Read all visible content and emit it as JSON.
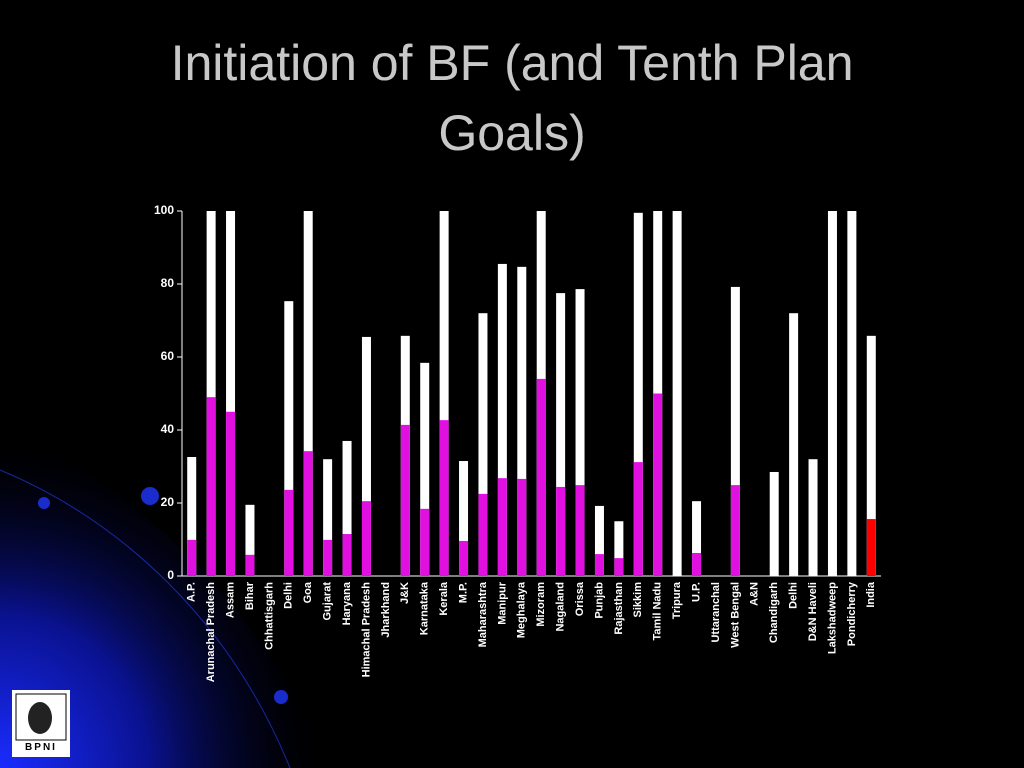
{
  "chart_data": {
    "type": "bar",
    "title": "Initiation of BF (and Tenth Plan Goals)",
    "categories": [
      "A.P.",
      "Arunachal Pradesh",
      "Assam",
      "Bihar",
      "Chhattisgarh",
      "Delhi",
      "Goa",
      "Gujarat",
      "Haryana",
      "Himachal Pradesh",
      "Jharkhand",
      "J&K",
      "Karnataka",
      "Kerala",
      "M.P.",
      "Maharashtra",
      "Manipur",
      "Meghalaya",
      "Mizoram",
      "Nagaland",
      "Orissa",
      "Punjab",
      "Rajasthan",
      "Sikkim",
      "Tamil Nadu",
      "Tripura",
      "U.P.",
      "Uttaranchal",
      "West Bengal",
      "A&N",
      "Chandigarh",
      "Delhi",
      "D&N Haveli",
      "Lakshadweep",
      "Pondicherry",
      "India"
    ],
    "series": [
      {
        "color": "#ffffff",
        "values": [
          32.6,
          100,
          100,
          19.5,
          null,
          75.3,
          100,
          32,
          37,
          65.5,
          null,
          65.8,
          58.4,
          100,
          31.5,
          72,
          85.5,
          84.7,
          100,
          77.5,
          78.6,
          19.2,
          15,
          99.5,
          100,
          100,
          20.5,
          null,
          79.2,
          null,
          28.5,
          72,
          32,
          100,
          100,
          65.8
        ]
      },
      {
        "color": "#e010e0",
        "colors": [
          "#e010e0",
          "#e010e0",
          "#e010e0",
          "#e010e0",
          "#e010e0",
          "#e010e0",
          "#e010e0",
          "#e010e0",
          "#e010e0",
          "#e010e0",
          "#e010e0",
          "#e010e0",
          "#e010e0",
          "#e010e0",
          "#e010e0",
          "#e010e0",
          "#e010e0",
          "#e010e0",
          "#e010e0",
          "#e010e0",
          "#e010e0",
          "#e010e0",
          "#e010e0",
          "#e010e0",
          "#e010e0",
          "#e010e0",
          "#e010e0",
          "#e010e0",
          "#e010e0",
          "#e010e0",
          "#e010e0",
          "#e010e0",
          "#e010e0",
          "#e010e0",
          "#e010e0",
          "#ff0000"
        ],
        "values": [
          9.9,
          49,
          45,
          5.8,
          null,
          23.6,
          34.2,
          9.9,
          11.5,
          20.5,
          null,
          41.4,
          18.4,
          42.7,
          9.6,
          22.5,
          26.8,
          26.6,
          54,
          24.4,
          24.9,
          6,
          4.9,
          31.2,
          50,
          null,
          6.3,
          null,
          24.9,
          null,
          null,
          null,
          null,
          null,
          null,
          15.6
        ]
      }
    ],
    "ylim": [
      0,
      100
    ],
    "yticks": [
      0,
      20,
      40,
      60,
      80,
      100
    ],
    "grid": false
  },
  "logo": {
    "text": "BPNI"
  }
}
